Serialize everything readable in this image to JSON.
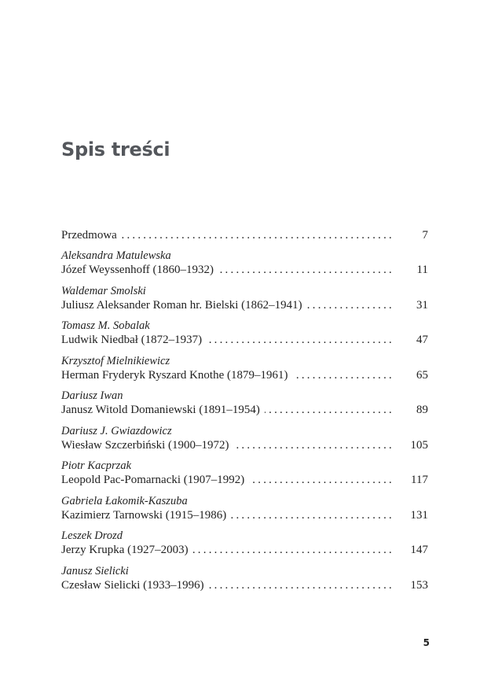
{
  "title": "Spis treści",
  "entries": [
    {
      "author": "",
      "title": "Przedmowa",
      "page": "7"
    },
    {
      "author": "Aleksandra Matulewska",
      "title": "Józef Weyssenhoff (1860–1932)",
      "page": "11"
    },
    {
      "author": "Waldemar Smolski",
      "title": "Juliusz Aleksander Roman hr. Bielski (1862–1941)",
      "page": "31"
    },
    {
      "author": "Tomasz M. Sobalak",
      "title": "Ludwik Niedbał (1872–1937)",
      "page": "47"
    },
    {
      "author": "Krzysztof Mielnikiewicz",
      "title": "Herman Fryderyk Ryszard Knothe (1879–1961)",
      "page": "65"
    },
    {
      "author": "Dariusz Iwan",
      "title": "Janusz Witold Domaniewski (1891–1954)",
      "page": "89"
    },
    {
      "author": "Dariusz J. Gwiazdowicz",
      "title": "Wiesław Szczerbiński (1900–1972)",
      "page": "105"
    },
    {
      "author": "Piotr Kacprzak",
      "title": "Leopold Pac-Pomarnacki (1907–1992)",
      "page": "117"
    },
    {
      "author": "Gabriela Łakomik-Kaszuba",
      "title": "Kazimierz Tarnowski (1915–1986)",
      "page": "131"
    },
    {
      "author": "Leszek Drozd",
      "title": "Jerzy Krupka (1927–2003)",
      "page": "147"
    },
    {
      "author": "Janusz Sielicki",
      "title": "Czesław Sielicki (1933–1996)",
      "page": "153"
    }
  ],
  "page_number": "5"
}
